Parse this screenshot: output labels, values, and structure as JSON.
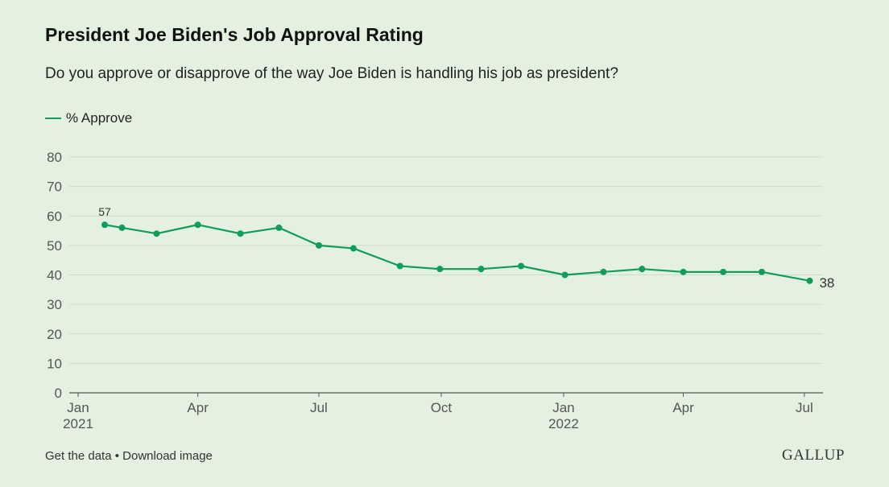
{
  "title": "President Joe Biden's Job Approval Rating",
  "subtitle": "Do you approve or disapprove of the way Joe Biden is handling his job as president?",
  "legend_label": "% Approve",
  "footer": {
    "get_data": "Get the data",
    "separator": "•",
    "download": "Download image"
  },
  "logo_text": "GALLUP",
  "colors": {
    "line": "#0f9d58",
    "grid": "#cfdccb",
    "background": "#e5f1e0"
  },
  "chart_data": {
    "type": "line",
    "title": "President Joe Biden's Job Approval Rating",
    "xlabel": "",
    "ylabel": "",
    "ylim": [
      0,
      80
    ],
    "yticks": [
      0,
      10,
      20,
      30,
      40,
      50,
      60,
      70,
      80
    ],
    "x_range": [
      "2021-01-01",
      "2022-07-15"
    ],
    "x_ticks": [
      {
        "date": "2021-01-01",
        "label": "Jan",
        "sublabel": "2021"
      },
      {
        "date": "2021-04-01",
        "label": "Apr",
        "sublabel": ""
      },
      {
        "date": "2021-07-01",
        "label": "Jul",
        "sublabel": ""
      },
      {
        "date": "2021-10-01",
        "label": "Oct",
        "sublabel": ""
      },
      {
        "date": "2022-01-01",
        "label": "Jan",
        "sublabel": "2022"
      },
      {
        "date": "2022-04-01",
        "label": "Apr",
        "sublabel": ""
      },
      {
        "date": "2022-07-01",
        "label": "Jul",
        "sublabel": ""
      }
    ],
    "series": [
      {
        "name": "% Approve",
        "points": [
          {
            "date": "2021-01-21",
            "value": 57,
            "label": "57"
          },
          {
            "date": "2021-02-03",
            "value": 56
          },
          {
            "date": "2021-03-01",
            "value": 54
          },
          {
            "date": "2021-04-01",
            "value": 57
          },
          {
            "date": "2021-05-03",
            "value": 54
          },
          {
            "date": "2021-06-01",
            "value": 56
          },
          {
            "date": "2021-07-01",
            "value": 50
          },
          {
            "date": "2021-07-27",
            "value": 49
          },
          {
            "date": "2021-08-31",
            "value": 43
          },
          {
            "date": "2021-09-30",
            "value": 42
          },
          {
            "date": "2021-10-31",
            "value": 42
          },
          {
            "date": "2021-11-30",
            "value": 43
          },
          {
            "date": "2022-01-02",
            "value": 40
          },
          {
            "date": "2022-01-31",
            "value": 41
          },
          {
            "date": "2022-03-01",
            "value": 42
          },
          {
            "date": "2022-04-01",
            "value": 41
          },
          {
            "date": "2022-05-01",
            "value": 41
          },
          {
            "date": "2022-05-30",
            "value": 41
          },
          {
            "date": "2022-07-05",
            "value": 38,
            "label": "38"
          }
        ]
      }
    ]
  }
}
